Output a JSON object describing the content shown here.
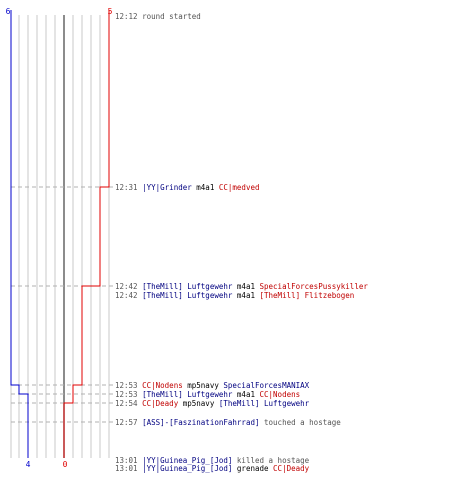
{
  "colors": {
    "team_blue": "#0000cc",
    "team_red": "#e00000",
    "name_blue": "#000080",
    "name_red": "#c00000",
    "time": "#555555"
  },
  "scores": {
    "blue_start": "6",
    "red_start": "5",
    "blue_end": "4",
    "red_end": "0"
  },
  "events": [
    {
      "time": "12:12",
      "parts": [
        {
          "text": "round started",
          "c": "g"
        }
      ]
    },
    {
      "time": "12:31",
      "parts": [
        {
          "text": "|YY|Grinder",
          "c": "b"
        },
        {
          "text": " m4a1 ",
          "c": "k"
        },
        {
          "text": "CC|medved",
          "c": "r"
        }
      ]
    },
    {
      "time": "12:42",
      "parts": [
        {
          "text": "[TheMill] Luftgewehr",
          "c": "b"
        },
        {
          "text": " m4a1 ",
          "c": "k"
        },
        {
          "text": "SpecialForcesPussykiller",
          "c": "r"
        }
      ]
    },
    {
      "time": "12:42",
      "parts": [
        {
          "text": "[TheMill] Luftgewehr",
          "c": "b"
        },
        {
          "text": " m4a1 ",
          "c": "k"
        },
        {
          "text": "[TheMill] Flitzebogen",
          "c": "r"
        }
      ]
    },
    {
      "time": "12:53",
      "parts": [
        {
          "text": "CC|Nodens",
          "c": "r"
        },
        {
          "text": " mp5navy ",
          "c": "k"
        },
        {
          "text": "SpecialForcesMANIAX",
          "c": "b"
        }
      ]
    },
    {
      "time": "12:53",
      "parts": [
        {
          "text": "[TheMill] Luftgewehr",
          "c": "b"
        },
        {
          "text": " m4a1 ",
          "c": "k"
        },
        {
          "text": "CC|Nodens",
          "c": "r"
        }
      ]
    },
    {
      "time": "12:54",
      "parts": [
        {
          "text": "CC|Deady",
          "c": "r"
        },
        {
          "text": " mp5navy ",
          "c": "k"
        },
        {
          "text": "[TheMill] Luftgewehr",
          "c": "b"
        }
      ]
    },
    {
      "time": "12:57",
      "parts": [
        {
          "text": "[ASS]-[FaszinationFahrrad]",
          "c": "b"
        },
        {
          "text": " touched a hostage",
          "c": "g"
        }
      ]
    },
    {
      "time": "13:01",
      "parts": [
        {
          "text": "|YY|Guinea_Pig_[Jod]",
          "c": "b"
        },
        {
          "text": " killed a hostage",
          "c": "g"
        }
      ]
    },
    {
      "time": "13:01",
      "parts": [
        {
          "text": "|YY|Guinea_Pig_[Jod]",
          "c": "b"
        },
        {
          "text": " grenade ",
          "c": "k"
        },
        {
          "text": "CC|Deady",
          "c": "r"
        }
      ]
    }
  ]
}
